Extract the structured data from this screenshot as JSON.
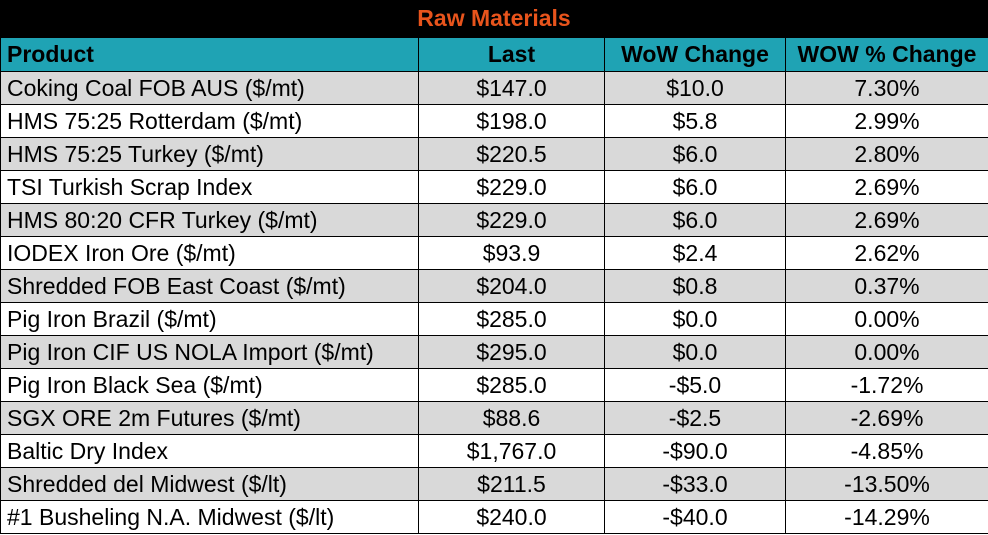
{
  "title": "Raw Materials",
  "columns": [
    "Product",
    "Last",
    "WoW Change",
    "WOW % Change"
  ],
  "rows": [
    {
      "product": "Coking Coal FOB AUS ($/mt)",
      "last": "$147.0",
      "wow_change": "$10.0",
      "wow_pct": "7.30%"
    },
    {
      "product": "HMS 75:25 Rotterdam ($/mt)",
      "last": "$198.0",
      "wow_change": "$5.8",
      "wow_pct": "2.99%"
    },
    {
      "product": "HMS 75:25 Turkey ($/mt)",
      "last": "$220.5",
      "wow_change": "$6.0",
      "wow_pct": "2.80%"
    },
    {
      "product": "TSI Turkish Scrap Index",
      "last": "$229.0",
      "wow_change": "$6.0",
      "wow_pct": "2.69%"
    },
    {
      "product": "HMS 80:20 CFR Turkey ($/mt)",
      "last": "$229.0",
      "wow_change": "$6.0",
      "wow_pct": "2.69%"
    },
    {
      "product": "IODEX  Iron Ore ($/mt)",
      "last": "$93.9",
      "wow_change": "$2.4",
      "wow_pct": "2.62%"
    },
    {
      "product": "Shredded FOB East Coast ($/mt)",
      "last": "$204.0",
      "wow_change": "$0.8",
      "wow_pct": "0.37%"
    },
    {
      "product": "Pig Iron Brazil ($/mt)",
      "last": "$285.0",
      "wow_change": "$0.0",
      "wow_pct": "0.00%"
    },
    {
      "product": "Pig Iron CIF US NOLA Import ($/mt)",
      "last": "$295.0",
      "wow_change": "$0.0",
      "wow_pct": "0.00%"
    },
    {
      "product": "Pig Iron Black Sea ($/mt)",
      "last": "$285.0",
      "wow_change": "-$5.0",
      "wow_pct": "-1.72%"
    },
    {
      "product": "SGX ORE 2m Futures ($/mt)",
      "last": "$88.6",
      "wow_change": "-$2.5",
      "wow_pct": "-2.69%"
    },
    {
      "product": "Baltic Dry Index",
      "last": "$1,767.0",
      "wow_change": "-$90.0",
      "wow_pct": "-4.85%"
    },
    {
      "product": "Shredded del  Midwest ($/lt)",
      "last": "$211.5",
      "wow_change": "-$33.0",
      "wow_pct": "-13.50%"
    },
    {
      "product": "#1 Busheling N.A. Midwest ($/lt)",
      "last": "$240.0",
      "wow_change": "-$40.0",
      "wow_pct": "-14.29%"
    }
  ],
  "colors": {
    "title_bg": "#000000",
    "title_text": "#e8541c",
    "header_bg": "#1fa3b4",
    "alt_row_bg": "#d9d9d9"
  }
}
